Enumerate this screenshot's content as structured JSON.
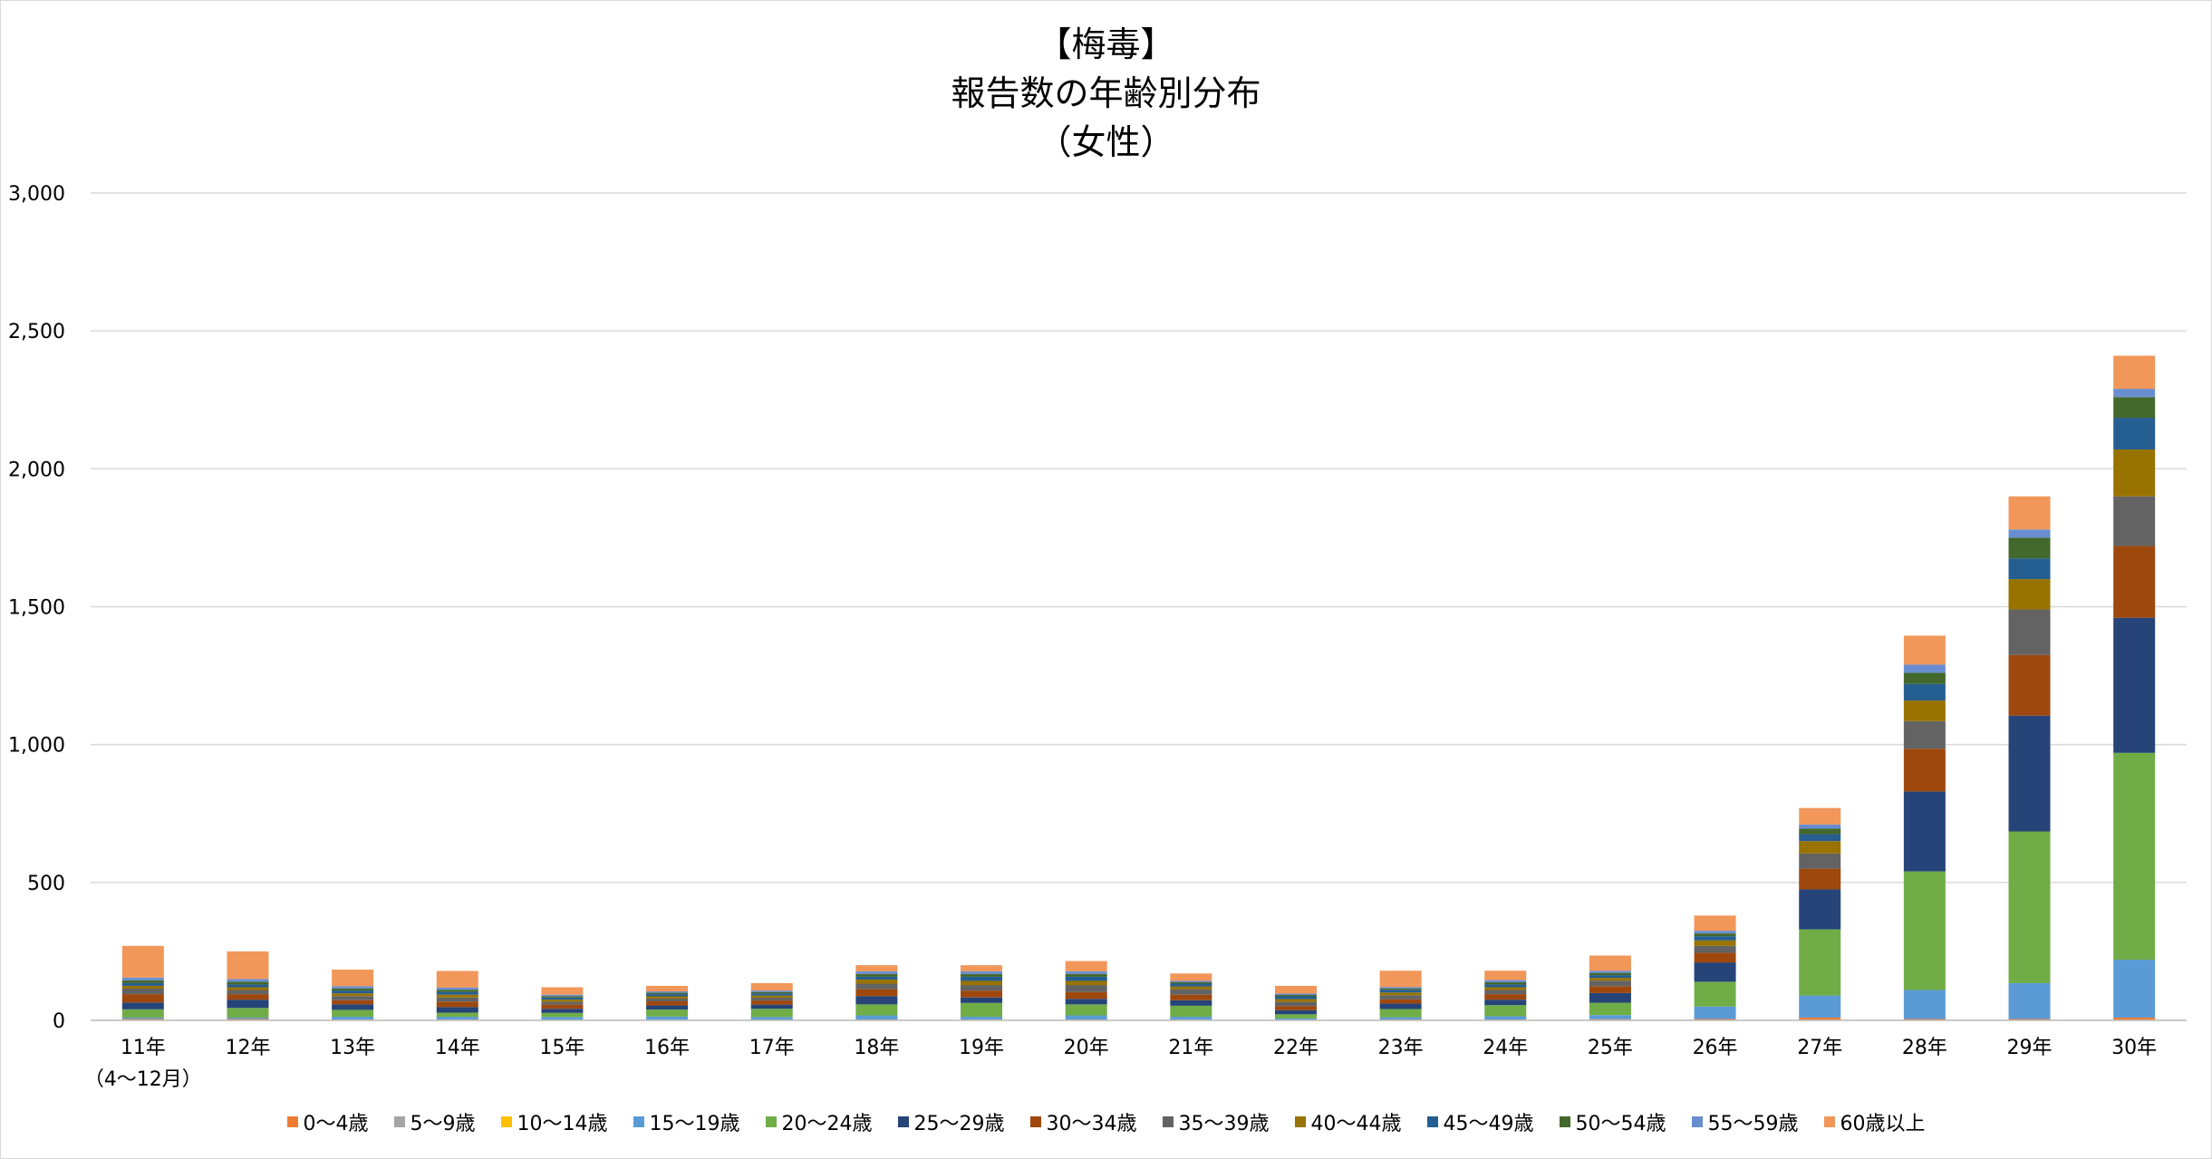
{
  "chart_data": {
    "type": "bar",
    "stacked": true,
    "title": [
      "【梅毒】",
      "報告数の年齢別分布",
      "（女性）"
    ],
    "categories": [
      "11年",
      "12年",
      "13年",
      "14年",
      "15年",
      "16年",
      "17年",
      "18年",
      "19年",
      "20年",
      "21年",
      "22年",
      "23年",
      "24年",
      "25年",
      "26年",
      "27年",
      "28年",
      "29年",
      "30年"
    ],
    "category_sublabels": [
      "（4～12月）",
      "",
      "",
      "",
      "",
      "",
      "",
      "",
      "",
      "",
      "",
      "",
      "",
      "",
      "",
      "",
      "",
      "",
      "",
      ""
    ],
    "ylim": [
      0,
      3000
    ],
    "yticks": [
      0,
      500,
      1000,
      1500,
      2000,
      2500,
      3000
    ],
    "ytick_labels": [
      "0",
      "500",
      "1,000",
      "1,500",
      "2,000",
      "2,500",
      "3,000"
    ],
    "grid": true,
    "legend_position": "bottom",
    "series": [
      {
        "name": "0～4歳",
        "color": "#ED7D31",
        "values": [
          5,
          5,
          3,
          3,
          2,
          2,
          2,
          3,
          3,
          3,
          3,
          2,
          3,
          3,
          4,
          5,
          10,
          5,
          5,
          10
        ]
      },
      {
        "name": "5～9歳",
        "color": "#A5A5A5",
        "values": [
          0,
          0,
          0,
          0,
          0,
          0,
          0,
          0,
          0,
          0,
          0,
          0,
          0,
          0,
          0,
          0,
          0,
          0,
          0,
          0
        ]
      },
      {
        "name": "10～14歳",
        "color": "#FFC000",
        "values": [
          0,
          0,
          0,
          0,
          0,
          0,
          0,
          0,
          0,
          0,
          0,
          0,
          0,
          0,
          0,
          0,
          0,
          0,
          0,
          0
        ]
      },
      {
        "name": "15～19歳",
        "color": "#5B9BD5",
        "values": [
          5,
          5,
          10,
          10,
          10,
          12,
          10,
          15,
          10,
          15,
          10,
          5,
          8,
          12,
          15,
          45,
          80,
          105,
          130,
          210
        ]
      },
      {
        "name": "20～24歳",
        "color": "#70AD47",
        "values": [
          30,
          35,
          25,
          15,
          15,
          25,
          30,
          40,
          50,
          40,
          40,
          15,
          30,
          40,
          45,
          90,
          240,
          430,
          550,
          750
        ]
      },
      {
        "name": "25～29歳",
        "color": "#264478",
        "values": [
          25,
          30,
          20,
          20,
          15,
          15,
          15,
          30,
          20,
          20,
          20,
          15,
          20,
          20,
          35,
          70,
          145,
          290,
          420,
          490
        ]
      },
      {
        "name": "30～34歳",
        "color": "#9E480E",
        "values": [
          30,
          20,
          15,
          20,
          15,
          15,
          15,
          25,
          25,
          25,
          20,
          15,
          15,
          20,
          25,
          35,
          75,
          155,
          220,
          260
        ]
      },
      {
        "name": "35～39歳",
        "color": "#636363",
        "values": [
          20,
          15,
          15,
          15,
          10,
          10,
          10,
          20,
          20,
          25,
          20,
          15,
          15,
          15,
          20,
          25,
          55,
          100,
          165,
          180
        ]
      },
      {
        "name": "40～44歳",
        "color": "#997300",
        "values": [
          10,
          10,
          10,
          10,
          8,
          8,
          8,
          15,
          15,
          15,
          10,
          10,
          10,
          10,
          10,
          20,
          45,
          75,
          110,
          170
        ]
      },
      {
        "name": "45～49歳",
        "color": "#255E91",
        "values": [
          10,
          10,
          10,
          10,
          8,
          8,
          8,
          10,
          15,
          15,
          10,
          10,
          10,
          10,
          10,
          15,
          25,
          60,
          75,
          115
        ]
      },
      {
        "name": "50～54歳",
        "color": "#43682B",
        "values": [
          10,
          10,
          8,
          8,
          5,
          5,
          5,
          10,
          10,
          10,
          5,
          5,
          5,
          8,
          8,
          10,
          20,
          40,
          75,
          75
        ]
      },
      {
        "name": "55～59歳",
        "color": "#698ED0",
        "values": [
          10,
          10,
          8,
          8,
          5,
          5,
          5,
          10,
          10,
          10,
          5,
          5,
          5,
          8,
          8,
          10,
          15,
          30,
          30,
          30
        ]
      },
      {
        "name": "60歳以上",
        "color": "#F1975A",
        "values": [
          115,
          100,
          60,
          60,
          27,
          20,
          27,
          22,
          22,
          37,
          27,
          28,
          59,
          34,
          55,
          55,
          60,
          105,
          120,
          120
        ]
      }
    ]
  }
}
